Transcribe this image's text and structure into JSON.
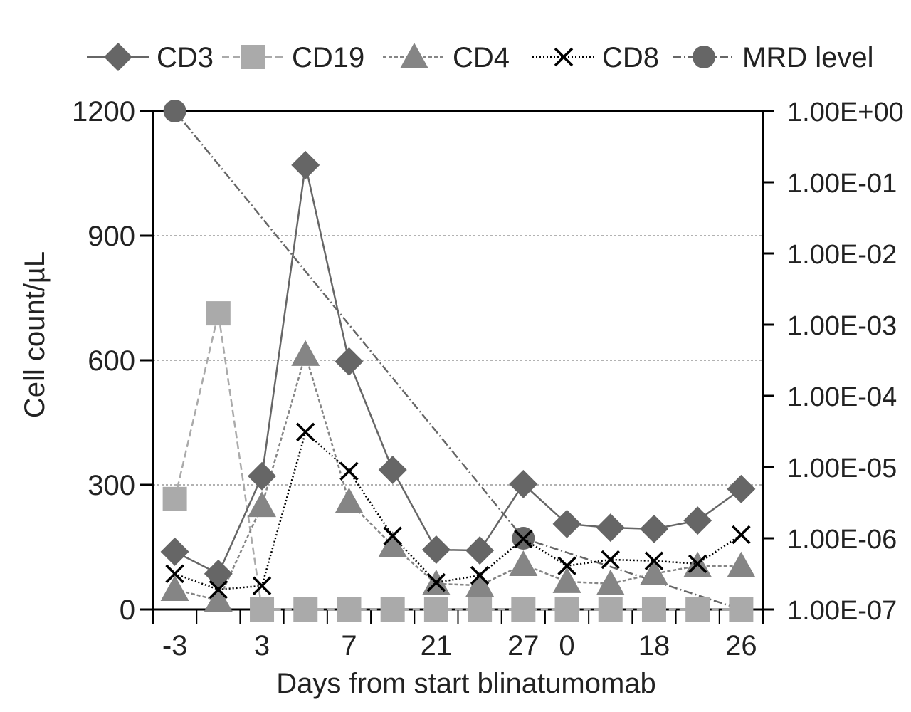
{
  "chart_data": {
    "type": "line",
    "title": "",
    "xlabel": "Days from start blinatumomab",
    "ylabel": "Cell count/µL",
    "y2label": "",
    "categories": [
      "-3",
      "",
      "3",
      "",
      "7",
      "",
      "21",
      "",
      "27",
      "0",
      "",
      "18",
      "",
      "26"
    ],
    "ylim": [
      0,
      1200
    ],
    "yticks": [
      "0",
      "300",
      "600",
      "900",
      "1200"
    ],
    "y2_scale": "log",
    "y2lim": [
      1e-07,
      1
    ],
    "y2ticks": [
      "1.00E-07",
      "1.00E-06",
      "1.00E-05",
      "1.00E-04",
      "1.00E-03",
      "1.00E-02",
      "1.00E-01",
      "1.00E+00"
    ],
    "grid": "horizontal dotted at 300, 600, 900",
    "legend_position": "top",
    "series": [
      {
        "name": "CD3",
        "axis": "left",
        "marker": "diamond",
        "color": "#666666",
        "dash": "",
        "values": [
          139,
          86,
          321,
          1070,
          597,
          336,
          144,
          142,
          302,
          206,
          197,
          194,
          214,
          290
        ]
      },
      {
        "name": "CD19",
        "axis": "left",
        "marker": "square",
        "color": "#aaaaaa",
        "dash": "10,5",
        "values": [
          266,
          713,
          0,
          0,
          0,
          0,
          0,
          0,
          0,
          0,
          0,
          0,
          0,
          0
        ]
      },
      {
        "name": "CD4",
        "axis": "left",
        "marker": "triangle",
        "color": "#858585",
        "dash": "5,3",
        "values": [
          48,
          22,
          250,
          614,
          259,
          154,
          62,
          58,
          108,
          67,
          62,
          86,
          105,
          105
        ]
      },
      {
        "name": "CD8",
        "axis": "left",
        "marker": "x",
        "color": "#000000",
        "dash": "2,3",
        "values": [
          86,
          48,
          57,
          427,
          333,
          177,
          65,
          82,
          170,
          105,
          120,
          117,
          110,
          180
        ]
      },
      {
        "name": "MRD level",
        "axis": "right",
        "marker": "circle",
        "color": "#666666",
        "dash": "12,4,2,4",
        "values": [
          1,
          null,
          null,
          null,
          null,
          null,
          null,
          null,
          1e-06,
          null,
          null,
          null,
          null,
          1e-07
        ]
      }
    ]
  }
}
